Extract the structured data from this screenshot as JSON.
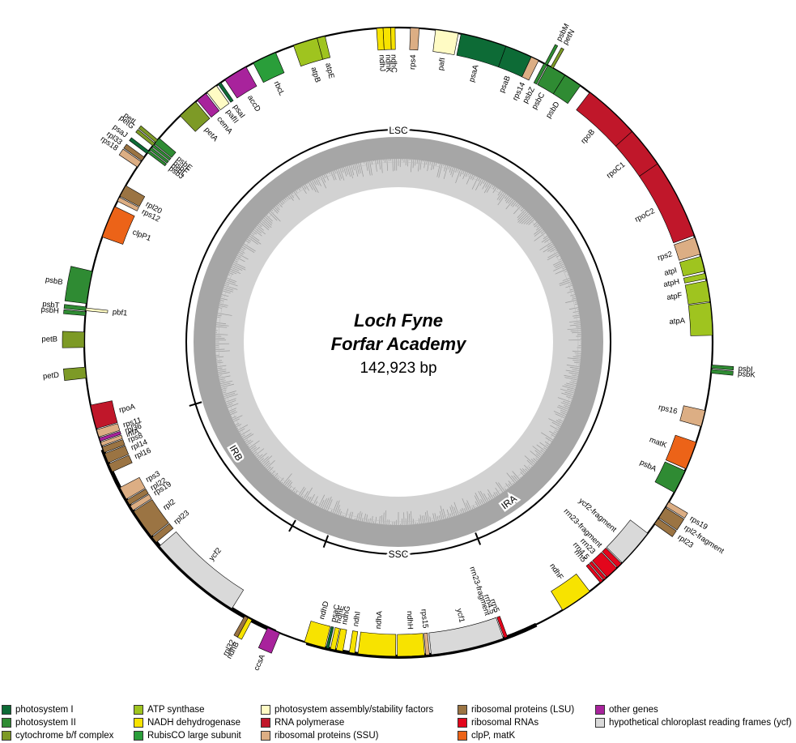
{
  "title": {
    "line1": "Loch Fyne",
    "line2": "Forfar Academy",
    "size": "142,923 bp"
  },
  "region_labels": [
    "LSC",
    "IRA",
    "SSC",
    "IRB"
  ],
  "categories": {
    "ps1": {
      "label": "photosystem I",
      "color": "#0d6b36"
    },
    "ps2": {
      "label": "photosystem II",
      "color": "#2f8b33"
    },
    "cyt": {
      "label": "cytochrome b/f complex",
      "color": "#7d9a26"
    },
    "atp": {
      "label": "ATP synthase",
      "color": "#9fc41f"
    },
    "ndh": {
      "label": "NADH dehydrogenase",
      "color": "#f7e300"
    },
    "rbc": {
      "label": "RubisCO large subunit",
      "color": "#2a9e3a"
    },
    "assm": {
      "label": "photosystem assembly/stability factors",
      "color": "#fffbc4"
    },
    "rpo": {
      "label": "RNA polymerase",
      "color": "#c0172a"
    },
    "ssu": {
      "label": "ribosomal proteins (SSU)",
      "color": "#dcae84"
    },
    "lsu": {
      "label": "ribosomal proteins (LSU)",
      "color": "#9b7443"
    },
    "rrn": {
      "label": "ribosomal RNAs",
      "color": "#e3061c"
    },
    "clp": {
      "label": "clpP, matK",
      "color": "#ec6318"
    },
    "oth": {
      "label": "other genes",
      "color": "#a8239c"
    },
    "ycf": {
      "label": "hypothetical chloroplast reading frames (ycf)",
      "color": "#d9d9d9"
    }
  },
  "legend_order": [
    [
      "ps1",
      "ps2",
      "cyt"
    ],
    [
      "atp",
      "ndh",
      "rbc"
    ],
    [
      "assm",
      "rpo",
      "ssu"
    ],
    [
      "lsu",
      "rrn",
      "clp"
    ],
    [
      "oth",
      "ycf"
    ]
  ],
  "genes": [
    {
      "name": "psaA",
      "cat": "ps1",
      "start": 11.5,
      "end": 20,
      "side": "out"
    },
    {
      "name": "psaB",
      "cat": "ps1",
      "start": 20,
      "end": 25,
      "side": "out"
    },
    {
      "name": "rps14",
      "cat": "ssu",
      "start": 25,
      "end": 26.5,
      "side": "out"
    },
    {
      "name": "pafI",
      "cat": "assm",
      "start": 6.8,
      "end": 11,
      "side": "out"
    },
    {
      "name": "rps4",
      "cat": "ssu",
      "start": 2.2,
      "end": 3.8,
      "side": "out"
    },
    {
      "name": "ndhJ",
      "cat": "ndh",
      "start": -4,
      "end": -2.8,
      "side": "out"
    },
    {
      "name": "ndhK",
      "cat": "ndh",
      "start": -2.8,
      "end": -1.4,
      "side": "out"
    },
    {
      "name": "ndhC",
      "cat": "ndh",
      "start": -1.4,
      "end": -0.6,
      "side": "out"
    },
    {
      "name": "atpE",
      "cat": "atp",
      "start": -15,
      "end": -13.5,
      "side": "out"
    },
    {
      "name": "atpB",
      "cat": "atp",
      "start": -19.5,
      "end": -15,
      "side": "out"
    },
    {
      "name": "rbcL",
      "cat": "rbc",
      "start": -27.5,
      "end": -23,
      "side": "out"
    },
    {
      "name": "accD",
      "cat": "oth",
      "start": -33.5,
      "end": -29,
      "side": "out"
    },
    {
      "name": "psaI",
      "cat": "ps1",
      "start": -35,
      "end": -34.4,
      "side": "out"
    },
    {
      "name": "pafII",
      "cat": "assm",
      "start": -37.5,
      "end": -35.4,
      "side": "out"
    },
    {
      "name": "cemA",
      "cat": "oth",
      "start": -39.8,
      "end": -37.8,
      "side": "out"
    },
    {
      "name": "petA",
      "cat": "cyt",
      "start": -44,
      "end": -40.2,
      "side": "out"
    },
    {
      "name": "petL",
      "cat": "cyt",
      "start": -50.6,
      "end": -50.0,
      "side": "in"
    },
    {
      "name": "petG",
      "cat": "cyt",
      "start": -51.4,
      "end": -50.8,
      "side": "in"
    },
    {
      "name": "psaJ",
      "cat": "ps1",
      "start": -53.2,
      "end": -52.6,
      "side": "in"
    },
    {
      "name": "rpl33",
      "cat": "lsu",
      "start": -54.8,
      "end": -54.0,
      "side": "in"
    },
    {
      "name": "rps18",
      "cat": "ssu",
      "start": -56.2,
      "end": -55.0,
      "side": "in"
    },
    {
      "name": "psbJ",
      "cat": "ps2",
      "start": -53.0,
      "end": -52.5,
      "side": "out"
    },
    {
      "name": "psbL",
      "cat": "ps2",
      "start": -52.3,
      "end": -51.8,
      "side": "out"
    },
    {
      "name": "psbF",
      "cat": "ps2",
      "start": -51.6,
      "end": -51.1,
      "side": "out"
    },
    {
      "name": "psbE",
      "cat": "ps2",
      "start": -50.9,
      "end": -49.6,
      "side": "out"
    },
    {
      "name": "rpl20",
      "cat": "lsu",
      "start": -62.4,
      "end": -60.2,
      "side": "out"
    },
    {
      "name": "rps12",
      "cat": "ssu",
      "start": -63.4,
      "end": -62.6,
      "side": "out"
    },
    {
      "name": "clpP1",
      "cat": "clp",
      "start": -70.5,
      "end": -64.5,
      "side": "out"
    },
    {
      "name": "psbB",
      "cat": "ps2",
      "start": -83,
      "end": -77,
      "side": "in"
    },
    {
      "name": "psbT",
      "cat": "ps2",
      "start": -84.3,
      "end": -83.6,
      "side": "in"
    },
    {
      "name": "psbH",
      "cat": "ps2",
      "start": -85.2,
      "end": -84.5,
      "side": "in"
    },
    {
      "name": "pbf1",
      "cat": "assm",
      "start": -84.3,
      "end": -83.8,
      "side": "out"
    },
    {
      "name": "petB",
      "cat": "cyt",
      "start": -91,
      "end": -88.2,
      "side": "in"
    },
    {
      "name": "petD",
      "cat": "cyt",
      "start": -96.6,
      "end": -94.6,
      "side": "in"
    },
    {
      "name": "rpoA",
      "cat": "rpo",
      "start": -106,
      "end": -101.6,
      "side": "out"
    },
    {
      "name": "rps11",
      "cat": "ssu",
      "start": -107.6,
      "end": -106.2,
      "side": "out"
    },
    {
      "name": "rpl36",
      "cat": "oth",
      "start": -108.4,
      "end": -107.8,
      "side": "out"
    },
    {
      "name": "infA",
      "cat": "ssu",
      "start": -109.3,
      "end": -108.6,
      "side": "out"
    },
    {
      "name": "rps8",
      "cat": "lsu",
      "start": -110.6,
      "end": -109.5,
      "side": "out"
    },
    {
      "name": "rpl14",
      "cat": "lsu",
      "start": -112.6,
      "end": -110.8,
      "side": "out"
    },
    {
      "name": "rpl16",
      "cat": "lsu",
      "start": -114.4,
      "end": -112.8,
      "side": "out"
    },
    {
      "name": "rps3",
      "cat": "ssu",
      "start": -120,
      "end": -117.6,
      "side": "out"
    },
    {
      "name": "rpl22",
      "cat": "lsu",
      "start": -121.2,
      "end": -120.2,
      "side": "out"
    },
    {
      "name": "rps19",
      "cat": "ssu",
      "start": -122.4,
      "end": -121.4,
      "side": "out"
    },
    {
      "name": "rpl2",
      "cat": "lsu",
      "start": -128.2,
      "end": -122.6,
      "side": "out"
    },
    {
      "name": "rpl23",
      "cat": "lsu",
      "start": -129.6,
      "end": -128.4,
      "side": "out"
    },
    {
      "name": "ycf2",
      "cat": "ycf",
      "start": -148,
      "end": -130.5,
      "side": "out"
    },
    {
      "name": "ndhB",
      "cat": "ndh",
      "start": -152.2,
      "end": -151.4,
      "side": "in"
    },
    {
      "name": "rrn23-fragment",
      "cat": "rrn",
      "start": -198.4,
      "end": -197.7,
      "side": "out"
    },
    {
      "name": "rrn4.5",
      "cat": "rrn",
      "start": -199.4,
      "end": -198.8,
      "side": "out"
    },
    {
      "name": "rrn5",
      "cat": "rrn",
      "start": -200.3,
      "end": -199.7,
      "side": "out"
    },
    {
      "name": "ndhF",
      "cat": "ndh",
      "start": -217.5,
      "end": -211.5,
      "side": "out"
    },
    {
      "name": "rpl32",
      "cat": "lsu",
      "start": 208.6,
      "end": 209.3,
      "side": "in"
    },
    {
      "name": "ccsA",
      "cat": "oth",
      "start": 202.2,
      "end": 204.6,
      "side": "in"
    },
    {
      "name": "ndhD",
      "cat": "ndh",
      "start": 193.5,
      "end": 197.4,
      "side": "out"
    },
    {
      "name": "psaC",
      "cat": "ps1",
      "start": 192.8,
      "end": 193.3,
      "side": "out"
    },
    {
      "name": "ndhE",
      "cat": "ndh",
      "start": 191.6,
      "end": 192.5,
      "side": "out"
    },
    {
      "name": "ndhG",
      "cat": "ndh",
      "start": 190.2,
      "end": 191.4,
      "side": "out"
    },
    {
      "name": "ndhI",
      "cat": "ndh",
      "start": 188.0,
      "end": 189.0,
      "side": "out"
    },
    {
      "name": "ndhA",
      "cat": "ndh",
      "start": 180.5,
      "end": 187.4,
      "side": "out"
    },
    {
      "name": "ndhH",
      "cat": "ndh",
      "start": 175.2,
      "end": 180.2,
      "side": "out"
    },
    {
      "name": "rps15",
      "cat": "ssu",
      "start": 174.3,
      "end": 175.0,
      "side": "out"
    },
    {
      "name": "ycf1",
      "cat": "ycf",
      "start": 160.5,
      "end": 174.0,
      "side": "out"
    },
    {
      "name": "rrn5",
      "cat": "rrn",
      "start": 139.4,
      "end": 140.0,
      "side": "out"
    },
    {
      "name": "rrn4.5",
      "cat": "rrn",
      "start": 138.6,
      "end": 139.2,
      "side": "out"
    },
    {
      "name": "rrn23",
      "cat": "rrn",
      "start": 136.0,
      "end": 138.4,
      "side": "out"
    },
    {
      "name": "rrn23-fragment",
      "cat": "rrn",
      "start": 134.8,
      "end": 135.8,
      "side": "out"
    },
    {
      "name": "ycf2-fragment",
      "cat": "ycf",
      "start": 127.5,
      "end": 134.6,
      "side": "out"
    },
    {
      "name": "rpl23",
      "cat": "lsu",
      "start": 124.2,
      "end": 125.4,
      "side": "in"
    },
    {
      "name": "rpl2-fragment",
      "cat": "lsu",
      "start": 121.8,
      "end": 124.0,
      "side": "in"
    },
    {
      "name": "rps19",
      "cat": "ssu",
      "start": 120.6,
      "end": 121.6,
      "side": "in"
    },
    {
      "name": "psbA",
      "cat": "ps2",
      "start": 114.2,
      "end": 118.6,
      "side": "out"
    },
    {
      "name": "matK",
      "cat": "clp",
      "start": 108.6,
      "end": 113.8,
      "side": "out"
    },
    {
      "name": "rps16",
      "cat": "ssu",
      "start": 102.6,
      "end": 105.6,
      "side": "out"
    },
    {
      "name": "psbI",
      "cat": "ps2",
      "start": 94.2,
      "end": 94.8,
      "side": "in"
    },
    {
      "name": "psbK",
      "cat": "ps2",
      "start": 95.0,
      "end": 95.7,
      "side": "in"
    },
    {
      "name": "atpA",
      "cat": "atp",
      "start": 82.8,
      "end": 88.8,
      "side": "out"
    },
    {
      "name": "atpF",
      "cat": "atp",
      "start": 78.8,
      "end": 82.6,
      "side": "out"
    },
    {
      "name": "atpH",
      "cat": "atp",
      "start": 77.4,
      "end": 78.4,
      "side": "out"
    },
    {
      "name": "atpI",
      "cat": "atp",
      "start": 74.2,
      "end": 77.0,
      "side": "out"
    },
    {
      "name": "rps2",
      "cat": "ssu",
      "start": 70.6,
      "end": 73.8,
      "side": "out"
    },
    {
      "name": "rpoC2",
      "cat": "rpo",
      "start": 55.5,
      "end": 70.2,
      "side": "out"
    },
    {
      "name": "rpoC1",
      "cat": "rpo",
      "start": 48.0,
      "end": 55.5,
      "side": "out"
    },
    {
      "name": "rpoB",
      "cat": "rpo",
      "start": 37.5,
      "end": 48.0,
      "side": "out"
    },
    {
      "name": "petN",
      "cat": "cyt",
      "start": 29.0,
      "end": 29.5,
      "side": "in"
    },
    {
      "name": "psbM",
      "cat": "ps2",
      "start": 27.8,
      "end": 28.3,
      "side": "in"
    },
    {
      "name": "psbZ",
      "cat": "ps2",
      "start": 27.6,
      "end": 28.2,
      "side": "out"
    },
    {
      "name": "psbC",
      "cat": "ps2",
      "start": 28.4,
      "end": 32.0,
      "side": "out"
    },
    {
      "name": "psbD",
      "cat": "ps2",
      "start": 32.0,
      "end": 35.4,
      "side": "out"
    }
  ]
}
